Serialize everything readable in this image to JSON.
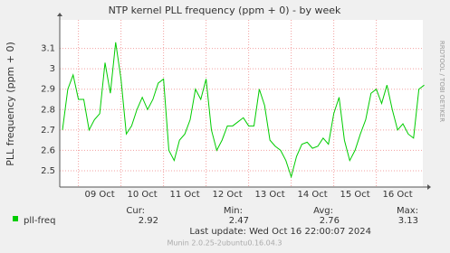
{
  "chart_data": {
    "type": "line",
    "title": "NTP kernel PLL frequency (ppm + 0) - by week",
    "y_label": "PLL frequency (ppm + 0)",
    "side_text": "RRDTOOL / TOBI OETIKER",
    "categories": [
      null,
      null,
      null,
      null,
      null,
      null,
      null,
      "09 Oct",
      null,
      null,
      null,
      null,
      null,
      null,
      null,
      "10 Oct",
      null,
      null,
      null,
      null,
      null,
      null,
      null,
      "11 Oct",
      null,
      null,
      null,
      null,
      null,
      null,
      null,
      "12 Oct",
      null,
      null,
      null,
      null,
      null,
      null,
      null,
      "13 Oct",
      null,
      null,
      null,
      null,
      null,
      null,
      null,
      "14 Oct",
      null,
      null,
      null,
      null,
      null,
      null,
      null,
      "15 Oct",
      null,
      null,
      null,
      null,
      null,
      null,
      null,
      "16 Oct",
      null,
      null,
      null,
      null,
      null
    ],
    "series": [
      {
        "name": "pll-freq",
        "color": "#00cc00",
        "values": [
          2.7,
          2.9,
          2.97,
          2.85,
          2.85,
          2.7,
          2.75,
          2.78,
          3.03,
          2.88,
          3.13,
          2.95,
          2.68,
          2.72,
          2.8,
          2.86,
          2.8,
          2.85,
          2.93,
          2.95,
          2.6,
          2.55,
          2.65,
          2.68,
          2.75,
          2.9,
          2.85,
          2.95,
          2.7,
          2.6,
          2.65,
          2.72,
          2.72,
          2.74,
          2.76,
          2.72,
          2.72,
          2.9,
          2.82,
          2.65,
          2.62,
          2.6,
          2.55,
          2.47,
          2.57,
          2.63,
          2.64,
          2.61,
          2.62,
          2.66,
          2.63,
          2.78,
          2.86,
          2.65,
          2.55,
          2.6,
          2.68,
          2.75,
          2.88,
          2.9,
          2.83,
          2.92,
          2.8,
          2.7,
          2.73,
          2.68,
          2.66,
          2.9,
          2.92
        ]
      }
    ],
    "ylim": [
      2.42,
      3.24
    ],
    "yticks": [
      2.5,
      2.6,
      2.7,
      2.8,
      2.9,
      3.0,
      3.1
    ],
    "grid": true,
    "legend_stats": {
      "headers": [
        "Cur:",
        "Min:",
        "Avg:",
        "Max:"
      ],
      "values": [
        2.92,
        2.47,
        2.76,
        3.13
      ]
    },
    "last_update": "Last update: Wed Oct 16 22:00:07 2024",
    "footer": "Munin 2.0.25-2ubuntu0.16.04.3"
  }
}
